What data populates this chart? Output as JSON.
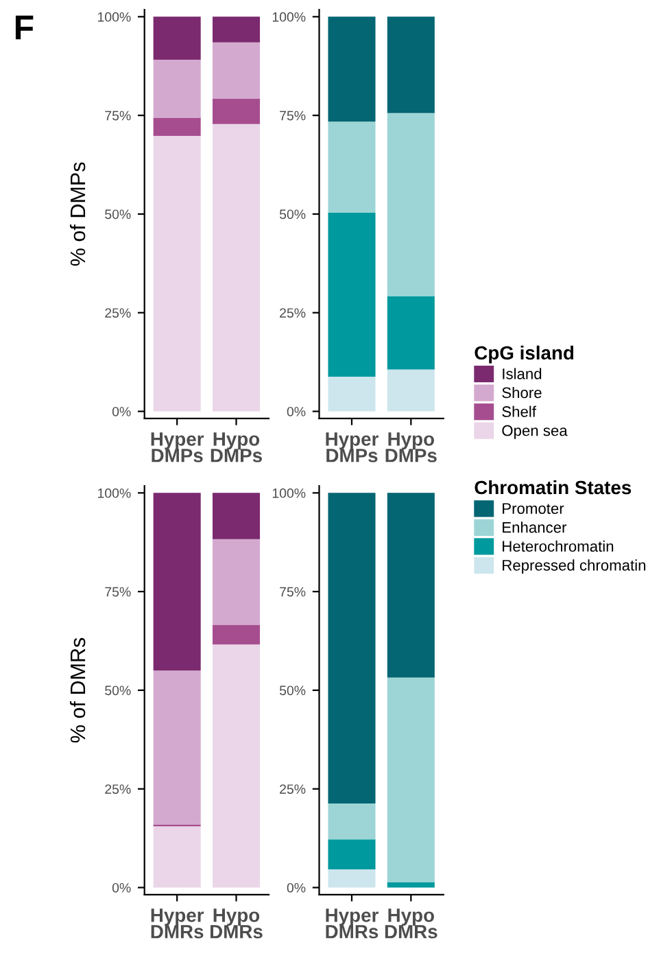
{
  "chart_data": [
    {
      "type": "bar",
      "stacked": true,
      "ylabel": "% of DMPs",
      "categories": [
        "Hyper\nDMPs",
        "Hypo\nDMPs"
      ],
      "ylim": [
        -1.8,
        101.8
      ],
      "yticks": [
        {
          "value": 0,
          "label": "0%"
        },
        {
          "value": 25,
          "label": "25%"
        },
        {
          "value": 50,
          "label": "50%"
        },
        {
          "value": 75,
          "label": "75%"
        },
        {
          "value": 100,
          "label": "100%"
        }
      ],
      "legend": "right",
      "legend_title": "CpG island",
      "grid": false,
      "annotations": [
        "F"
      ],
      "series": [
        {
          "name": "Open sea",
          "color": "#ead6e8",
          "values": [
            69.8,
            72.8
          ]
        },
        {
          "name": "Shelf",
          "color": "#a64d8f",
          "values": [
            4.6,
            6.4
          ]
        },
        {
          "name": "Shore",
          "color": "#d4a9cf",
          "values": [
            14.7,
            14.3
          ]
        },
        {
          "name": "Island",
          "color": "#7b2a6f",
          "values": [
            10.9,
            6.5
          ]
        }
      ]
    },
    {
      "type": "bar",
      "stacked": true,
      "categories": [
        "Hyper\nDMPs",
        "Hypo\nDMPs"
      ],
      "ylim": [
        -1.8,
        101.8
      ],
      "yticks": [
        {
          "value": 0,
          "label": "0%"
        },
        {
          "value": 25,
          "label": "25%"
        },
        {
          "value": 50,
          "label": "50%"
        },
        {
          "value": 75,
          "label": "75%"
        },
        {
          "value": 100,
          "label": "100%"
        }
      ],
      "legend": "right",
      "legend_title": "Chromatin States",
      "grid": false,
      "series": [
        {
          "name": "Repressed chromatin",
          "color": "#cde6ee",
          "values": [
            8.8,
            10.6
          ]
        },
        {
          "name": "Heterochromatin",
          "color": "#009a9e",
          "values": [
            41.6,
            18.6
          ]
        },
        {
          "name": "Enhancer",
          "color": "#9dd5d6",
          "values": [
            23.0,
            46.4
          ]
        },
        {
          "name": "Promoter",
          "color": "#036672",
          "values": [
            26.6,
            24.4
          ]
        }
      ]
    },
    {
      "type": "bar",
      "stacked": true,
      "ylabel": "% of DMRs",
      "categories": [
        "Hyper\nDMRs",
        "Hypo\nDMRs"
      ],
      "ylim": [
        -1.8,
        101.8
      ],
      "yticks": [
        {
          "value": 0,
          "label": "0%"
        },
        {
          "value": 25,
          "label": "25%"
        },
        {
          "value": 50,
          "label": "50%"
        },
        {
          "value": 75,
          "label": "75%"
        },
        {
          "value": 100,
          "label": "100%"
        }
      ],
      "grid": false,
      "series": [
        {
          "color": "#ead6e8",
          "values": [
            15.5,
            61.6
          ]
        },
        {
          "color": "#a64d8f",
          "values": [
            0.4,
            5.0
          ]
        },
        {
          "color": "#d4a9cf",
          "values": [
            39.1,
            21.7
          ]
        },
        {
          "color": "#7b2a6f",
          "values": [
            45.0,
            11.7
          ]
        }
      ]
    },
    {
      "type": "bar",
      "stacked": true,
      "categories": [
        "Hyper\nDMRs",
        "Hypo\nDMRs"
      ],
      "ylim": [
        -1.8,
        101.8
      ],
      "yticks": [
        {
          "value": 0,
          "label": "0%"
        },
        {
          "value": 25,
          "label": "25%"
        },
        {
          "value": 50,
          "label": "50%"
        },
        {
          "value": 75,
          "label": "75%"
        },
        {
          "value": 100,
          "label": "100%"
        }
      ],
      "grid": false,
      "series": [
        {
          "color": "#cde6ee",
          "values": [
            4.6,
            0.0
          ]
        },
        {
          "color": "#009a9e",
          "values": [
            7.6,
            1.4
          ]
        },
        {
          "color": "#9dd5d6",
          "values": [
            9.1,
            51.8
          ]
        },
        {
          "color": "#036672",
          "values": [
            78.7,
            46.8
          ]
        }
      ]
    }
  ]
}
